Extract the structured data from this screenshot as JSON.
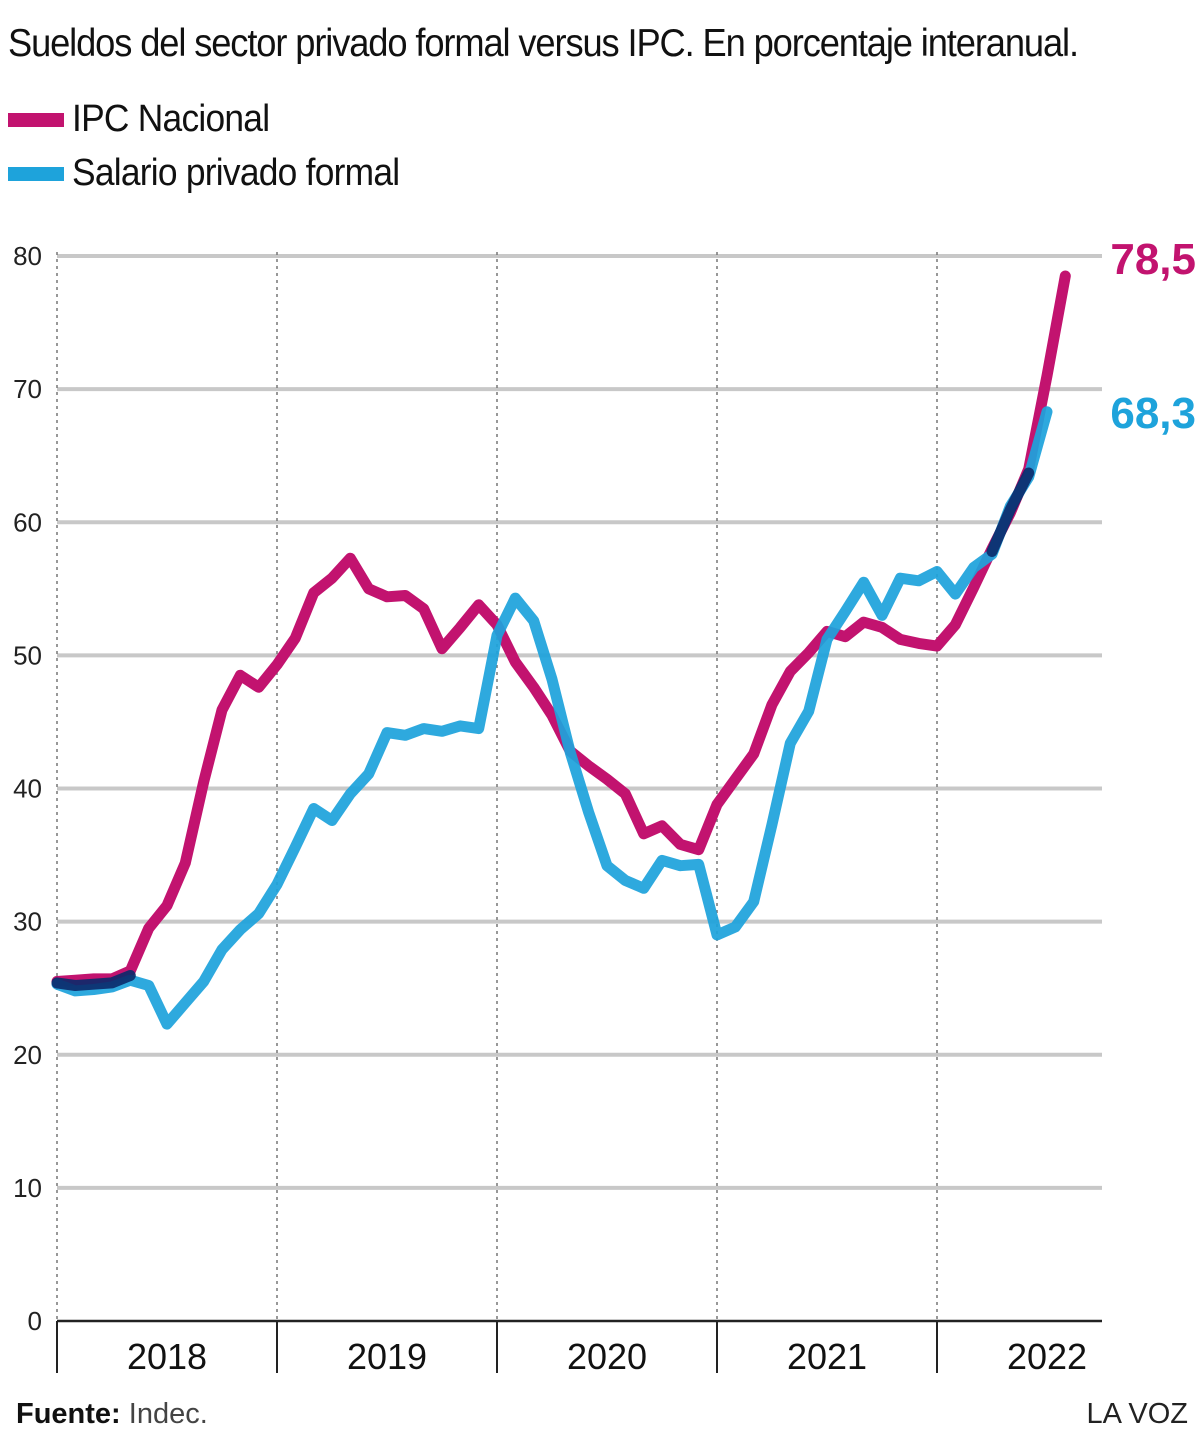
{
  "title": "Sueldos del sector privado formal versus IPC. En porcentaje interanual.",
  "footer": {
    "source_label": "Fuente:",
    "source_value": "Indec.",
    "brand": "LA VOZ"
  },
  "colors": {
    "ipc": "#c2136f",
    "salario": "#1ea3db",
    "overlap": "#0b2a6a",
    "grid": "#c8c8c8"
  },
  "chart_data": {
    "type": "line",
    "title": "Sueldos del sector privado formal versus IPC. En porcentaje interanual.",
    "xlabel": "",
    "ylabel": "",
    "ylim": [
      0,
      80
    ],
    "yticks": [
      "0",
      "10",
      "20",
      "30",
      "40",
      "50",
      "60",
      "70",
      "80"
    ],
    "year_labels": [
      "2018",
      "2019",
      "2020",
      "2021",
      "2022"
    ],
    "grid": true,
    "legend_position": "top-left",
    "series": [
      {
        "name": "IPC Nacional",
        "color": "#c2136f",
        "end_label": "78,5",
        "values": [
          25.5,
          25.6,
          25.7,
          25.7,
          26.3,
          29.5,
          31.2,
          34.4,
          40.5,
          45.9,
          48.5,
          47.6,
          49.3,
          51.3,
          54.7,
          55.8,
          57.3,
          55.0,
          54.4,
          54.5,
          53.5,
          50.5,
          52.1,
          53.8,
          52.3,
          49.5,
          47.6,
          45.5,
          42.8,
          41.7,
          40.7,
          39.6,
          36.6,
          37.2,
          35.8,
          35.4,
          38.8,
          40.7,
          42.6,
          46.3,
          48.8,
          50.2,
          51.8,
          51.4,
          52.5,
          52.1,
          51.2,
          50.9,
          50.7,
          52.3,
          55.1,
          58.0,
          60.7,
          64.0,
          71.0,
          78.5
        ]
      },
      {
        "name": "Salario privado formal",
        "color": "#1ea3db",
        "end_label": "68,3",
        "values": [
          25.3,
          24.8,
          24.9,
          25.1,
          25.6,
          25.2,
          22.3,
          23.9,
          25.5,
          27.9,
          29.4,
          30.6,
          32.8,
          35.6,
          38.5,
          37.6,
          39.6,
          41.1,
          44.2,
          44.0,
          44.5,
          44.3,
          44.7,
          44.5,
          51.5,
          54.3,
          52.6,
          48.2,
          42.7,
          38.2,
          34.2,
          33.1,
          32.5,
          34.6,
          34.2,
          34.3,
          29.0,
          29.6,
          31.5,
          37.3,
          43.4,
          45.8,
          51.2,
          53.3,
          55.5,
          53.0,
          55.8,
          55.6,
          56.3,
          54.6,
          56.6,
          57.6,
          61.2,
          63.4,
          68.3
        ]
      }
    ]
  }
}
